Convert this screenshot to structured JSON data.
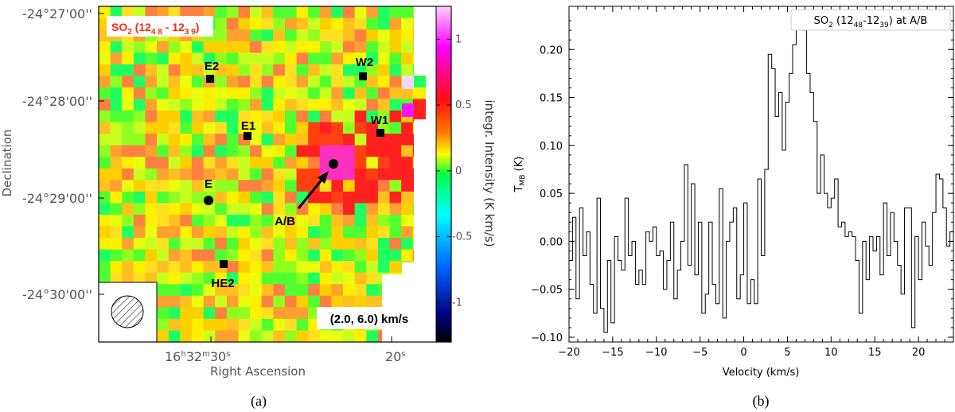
{
  "chart_data": [
    {
      "type": "heatmap",
      "panel_label": "(a)",
      "title": "SO2 (12_4,8 - 12_3,9)",
      "title_parts": {
        "main": "SO",
        "sub1": "2",
        "mid1": " (12",
        "sub2": "4 8",
        "mid2": " - 12",
        "sub3": "3 9",
        "end": ")"
      },
      "velocity_range_label": "(2.0, 6.0) km/s",
      "xlabel": "Right Ascension",
      "ylabel": "Declination",
      "x_ticks": [
        {
          "h": "16",
          "m": "32",
          "s": "30",
          "label_parts": [
            "16",
            "h",
            "32",
            "m",
            "30",
            "s"
          ]
        },
        {
          "s": "20",
          "label_parts": [
            "20",
            "s"
          ]
        }
      ],
      "y_ticks": [
        "-24°27'00''",
        "-24°28'00''",
        "-24°29'00''",
        "-24°30'00''"
      ],
      "colorbar": {
        "label": "integr. Intensity (K km/s)",
        "range": [
          -1.3,
          1.25
        ],
        "ticks": [
          {
            "value": 1,
            "label": "1"
          },
          {
            "value": 0.5,
            "label": "0.5"
          },
          {
            "value": 0,
            "label": "0"
          },
          {
            "value": -0.5,
            "label": "-0.5"
          },
          {
            "value": -1,
            "label": "-1"
          }
        ]
      },
      "markers": [
        {
          "name": "E2",
          "shape": "square"
        },
        {
          "name": "W2",
          "shape": "square"
        },
        {
          "name": "E1",
          "shape": "square"
        },
        {
          "name": "W1",
          "shape": "square"
        },
        {
          "name": "E",
          "shape": "circle"
        },
        {
          "name": "A/B",
          "shape": "circle"
        },
        {
          "name": "HE2",
          "shape": "square"
        }
      ],
      "beam": "hatched circle (lower-left)",
      "colors": {
        "high": "#ff00ff",
        "mid_high": "#ff2020",
        "mid": "#ffff00",
        "zero": "#00ff80",
        "low": "#00ffff",
        "lowest": "#000000"
      }
    },
    {
      "type": "line",
      "style": "step",
      "panel_label": "(b)",
      "legend": {
        "text": "SO2 (12_48-12_39) at A/B",
        "parts": {
          "main": "SO",
          "sub1": "2",
          "mid1": " (12",
          "sub2": "48",
          "mid2": "-12",
          "sub3": "39",
          "end": ") at A/B"
        },
        "position": "top-right"
      },
      "xlabel": "Velocity (km/s)",
      "ylabel": "T_MB (K)",
      "ylabel_parts": {
        "main": "T",
        "sub": "MB",
        "unit": " (K)"
      },
      "xlim": [
        -20,
        24
      ],
      "ylim": [
        -0.105,
        0.245
      ],
      "x_ticks": [
        -20,
        -15,
        -10,
        -5,
        0,
        5,
        10,
        15,
        20
      ],
      "x_tick_labels": [
        "−20",
        "−15",
        "−10",
        "−5",
        "0",
        "5",
        "10",
        "15",
        "20"
      ],
      "y_ticks": [
        -0.1,
        -0.05,
        0.0,
        0.05,
        0.1,
        0.15,
        0.2
      ],
      "y_tick_labels": [
        "−0.10",
        "−0.05",
        "0.00",
        "0.05",
        "0.10",
        "0.15",
        "0.20"
      ],
      "x_step": 0.4,
      "x_start": -20.0,
      "values": [
        -0.02,
        0.025,
        -0.06,
        0.035,
        -0.015,
        0.01,
        -0.045,
        -0.075,
        0.045,
        -0.07,
        -0.095,
        -0.02,
        -0.085,
        0.005,
        -0.02,
        -0.03,
        0.045,
        -0.015,
        0.0,
        -0.045,
        -0.03,
        -0.045,
        0.01,
        0.0,
        0.015,
        -0.015,
        -0.01,
        -0.05,
        -0.02,
        0.02,
        -0.06,
        -0.03,
        0.0,
        0.08,
        -0.025,
        0.06,
        -0.035,
        0.02,
        -0.075,
        -0.055,
        0.02,
        -0.045,
        -0.065,
        0.055,
        -0.08,
        0.0,
        0.02,
        0.035,
        -0.06,
        -0.035,
        0.04,
        -0.065,
        -0.04,
        -0.065,
        0.065,
        -0.015,
        0.075,
        0.195,
        0.18,
        0.13,
        0.155,
        0.095,
        0.145,
        0.175,
        0.205,
        0.225,
        0.23,
        0.22,
        0.175,
        0.155,
        0.125,
        0.05,
        0.09,
        0.05,
        0.035,
        0.045,
        0.065,
        0.015,
        0.02,
        0.005,
        0.01,
        0.005,
        -0.02,
        -0.075,
        0.0,
        -0.04,
        0.005,
        -0.01,
        0.005,
        -0.035,
        0.04,
        -0.015,
        0.03,
        0.0,
        -0.025,
        -0.055,
        0.035,
        0.035,
        -0.09,
        0.005,
        -0.04,
        0.02,
        -0.005,
        -0.025,
        0.03,
        0.07,
        0.065,
        0.035,
        -0.005,
        0.01,
        -0.015,
        0.025,
        0.015,
        0.025,
        0.01,
        0.03,
        0.045,
        -0.01,
        0.0,
        -0.015,
        0.005,
        -0.01,
        0.05,
        0.035,
        -0.03,
        -0.005,
        0.025,
        0.04,
        -0.005,
        -0.03,
        -0.055,
        0.0,
        0.035
      ]
    }
  ]
}
